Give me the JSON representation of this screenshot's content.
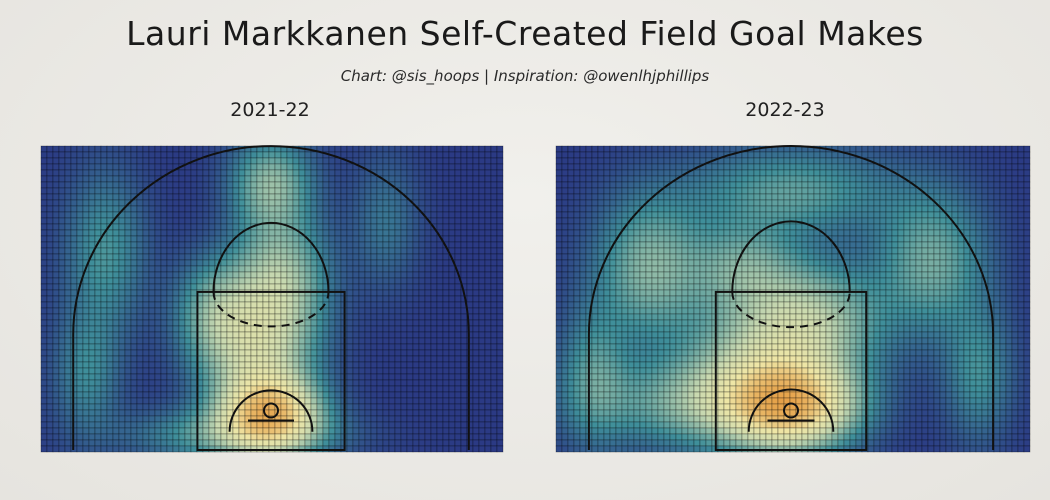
{
  "title": "Lauri Markkanen Self-Created Field Goal Makes",
  "subtitle": "Chart: @sis_hoops | Inspiration: @owenlhjphillips",
  "colors": {
    "low": "#2b3a84",
    "mid_low": "#3f8f9a",
    "mid": "#c9d9b0",
    "mid_high": "#efe6a6",
    "high": "#e6a24a",
    "peak": "#b5221b",
    "court_lines": "#111111",
    "background": "#ebeae6"
  },
  "chart_data": [
    {
      "type": "heatmap",
      "title": "2021-22",
      "xlabel": "",
      "ylabel": "",
      "colormap": "blue-teal-cream-yellow-red (density of makes)",
      "court": "half-court, basket at bottom",
      "hotspots": [
        {
          "zone": "restricted area / at rim",
          "intensity": 1.0
        },
        {
          "zone": "paint left of rim",
          "intensity": 0.75
        },
        {
          "zone": "free-throw line / top of key",
          "intensity": 0.55
        },
        {
          "zone": "left of free-throw line",
          "intensity": 0.45
        },
        {
          "zone": "above the break top center",
          "intensity": 0.5
        },
        {
          "zone": "left wing three",
          "intensity": 0.35
        },
        {
          "zone": "left corner three",
          "intensity": 0.3
        }
      ]
    },
    {
      "type": "heatmap",
      "title": "2022-23",
      "xlabel": "",
      "ylabel": "",
      "colormap": "blue-teal-cream-yellow-red (density of makes)",
      "court": "half-court, basket at bottom",
      "hotspots": [
        {
          "zone": "restricted area / at rim",
          "intensity": 1.0
        },
        {
          "zone": "lower paint",
          "intensity": 0.85
        },
        {
          "zone": "left block",
          "intensity": 0.7
        },
        {
          "zone": "free-throw line",
          "intensity": 0.5
        },
        {
          "zone": "left wing three",
          "intensity": 0.5
        },
        {
          "zone": "right wing three",
          "intensity": 0.45
        },
        {
          "zone": "top of key three",
          "intensity": 0.4
        },
        {
          "zone": "left corner three",
          "intensity": 0.35
        },
        {
          "zone": "right corner three",
          "intensity": 0.3
        }
      ]
    }
  ]
}
